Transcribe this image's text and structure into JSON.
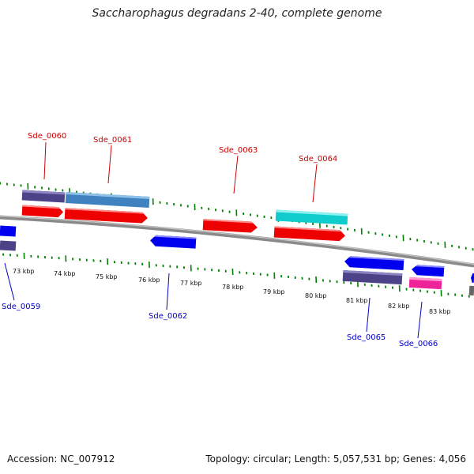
{
  "header": {
    "title": "Saccharophagus degradans 2-40, complete genome"
  },
  "footer": {
    "accession": "Accession: NC_007912",
    "summary": "Topology: circular; Length: 5,057,531 bp; Genes: 4,056"
  },
  "colors": {
    "forward_label": "#cc0000",
    "reverse_label": "#0000cc",
    "tick": "#008000",
    "backbone": "#888888",
    "purple": "#4b4287",
    "steelblue": "#3f82bf",
    "red": "#ee0000",
    "blue": "#0000ee",
    "cyan": "#10cccc",
    "pink": "#ee2299"
  },
  "scale_labels": [
    "73 kbp",
    "74 kbp",
    "75 kbp",
    "76 kbp",
    "77 kbp",
    "78 kbp",
    "79 kbp",
    "80 kbp",
    "81 kbp",
    "82 kbp",
    "83 kbp"
  ],
  "gene_labels": {
    "forward": [
      "Sde_0060",
      "Sde_0061",
      "Sde_0063",
      "Sde_0064"
    ],
    "reverse": [
      "Sde_0059",
      "Sde_0062",
      "Sde_0065",
      "Sde_0066"
    ]
  }
}
